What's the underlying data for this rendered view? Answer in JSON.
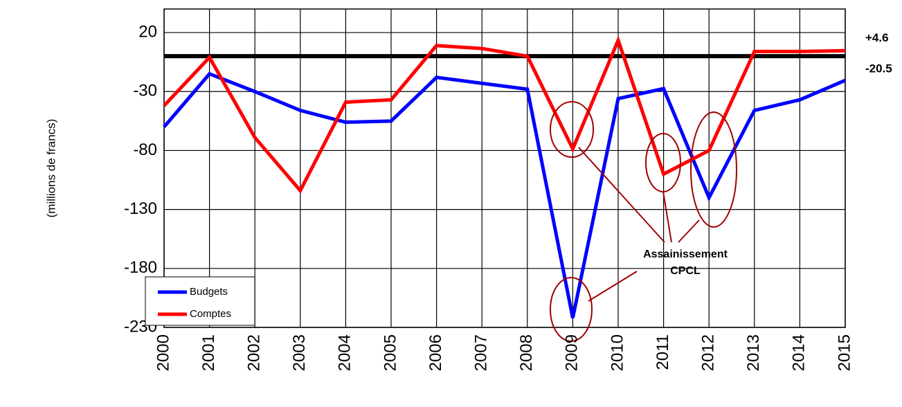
{
  "chart_data": {
    "type": "line",
    "y_label": "(millions de francs)",
    "categories": [
      "2000",
      "2001",
      "2002",
      "2003",
      "2004",
      "2005",
      "2006",
      "2007",
      "2008",
      "2009",
      "2010",
      "2011",
      "2012",
      "2013",
      "2014",
      "2015"
    ],
    "series": [
      {
        "name": "Budgets",
        "color": "#0000ff",
        "values": [
          -60,
          -15,
          -30,
          -46,
          -56,
          -55,
          -18,
          -23,
          -28,
          -222,
          -36,
          -27.5,
          -120,
          -46,
          -37,
          -20.5
        ],
        "end_label": "-20.5"
      },
      {
        "name": "Comptes",
        "color": "#ff0000",
        "values": [
          -42,
          -1,
          -69,
          -114,
          -39,
          -37,
          9,
          6.5,
          0,
          -78.6,
          13.5,
          -100,
          -80,
          4,
          4,
          4.6
        ],
        "end_label": "+4.6"
      }
    ],
    "reference_line": 0,
    "annotation": [
      "Assainissement",
      "CPCL"
    ],
    "annotation_color": "#c00000",
    "ylim": [
      -230,
      40
    ],
    "yticks": [
      -230,
      -180,
      -130,
      -80,
      -30,
      20
    ],
    "grid": true,
    "legend": "lower left"
  }
}
